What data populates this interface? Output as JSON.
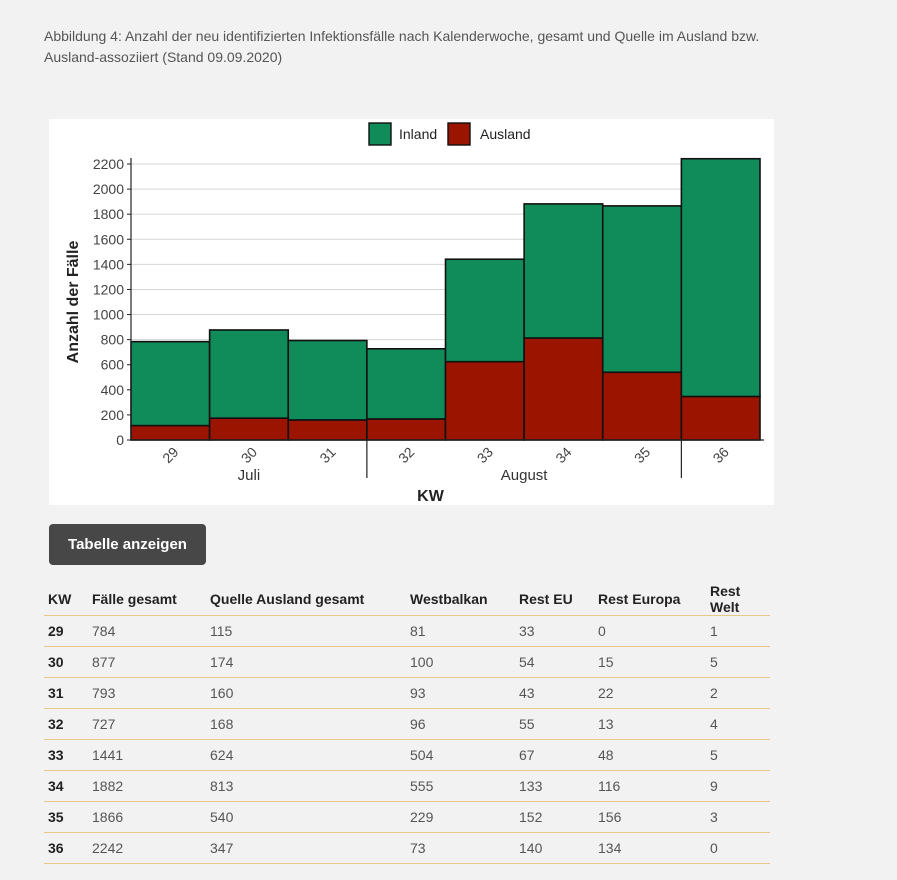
{
  "caption": "Abbildung 4: Anzahl der neu identifizierten Infektionsfälle nach Kalenderwoche, gesamt und Quelle im Ausland bzw. Ausland-assoziiert (Stand 09.09.2020)",
  "colors": {
    "inland": "#108b5a",
    "ausland": "#9b1400"
  },
  "chart_data": {
    "type": "bar",
    "stacked": true,
    "categories": [
      "29",
      "30",
      "31",
      "32",
      "33",
      "34",
      "35",
      "36"
    ],
    "month_groups": [
      {
        "label": "Juli",
        "categories": [
          "29",
          "30",
          "31"
        ]
      },
      {
        "label": "August",
        "categories": [
          "32",
          "33",
          "34",
          "35"
        ]
      }
    ],
    "series": [
      {
        "name": "Inland",
        "values": [
          669,
          703,
          633,
          559,
          817,
          1069,
          1326,
          1895
        ],
        "color": "#108b5a"
      },
      {
        "name": "Ausland",
        "values": [
          115,
          174,
          160,
          168,
          624,
          813,
          540,
          347
        ],
        "color": "#9b1400"
      }
    ],
    "totals": [
      784,
      877,
      793,
      727,
      1441,
      1882,
      1866,
      2242
    ],
    "xlabel": "KW",
    "ylabel": "Anzahl der Fälle",
    "ylim": [
      0,
      2200
    ],
    "yticks": [
      0,
      200,
      400,
      600,
      800,
      1000,
      1200,
      1400,
      1600,
      1800,
      2000,
      2200
    ],
    "grid": true,
    "legend_position": "top"
  },
  "button": {
    "label": "Tabelle anzeigen"
  },
  "table": {
    "headers": [
      "KW",
      "Fälle gesamt",
      "Quelle Ausland gesamt",
      "Westbalkan",
      "Rest EU",
      "Rest Europa",
      "Rest Welt"
    ],
    "rows": [
      [
        "29",
        "784",
        "115",
        "81",
        "33",
        "0",
        "1"
      ],
      [
        "30",
        "877",
        "174",
        "100",
        "54",
        "15",
        "5"
      ],
      [
        "31",
        "793",
        "160",
        "93",
        "43",
        "22",
        "2"
      ],
      [
        "32",
        "727",
        "168",
        "96",
        "55",
        "13",
        "4"
      ],
      [
        "33",
        "1441",
        "624",
        "504",
        "67",
        "48",
        "5"
      ],
      [
        "34",
        "1882",
        "813",
        "555",
        "133",
        "116",
        "9"
      ],
      [
        "35",
        "1866",
        "540",
        "229",
        "152",
        "156",
        "3"
      ],
      [
        "36",
        "2242",
        "347",
        "73",
        "140",
        "134",
        "0"
      ]
    ]
  }
}
